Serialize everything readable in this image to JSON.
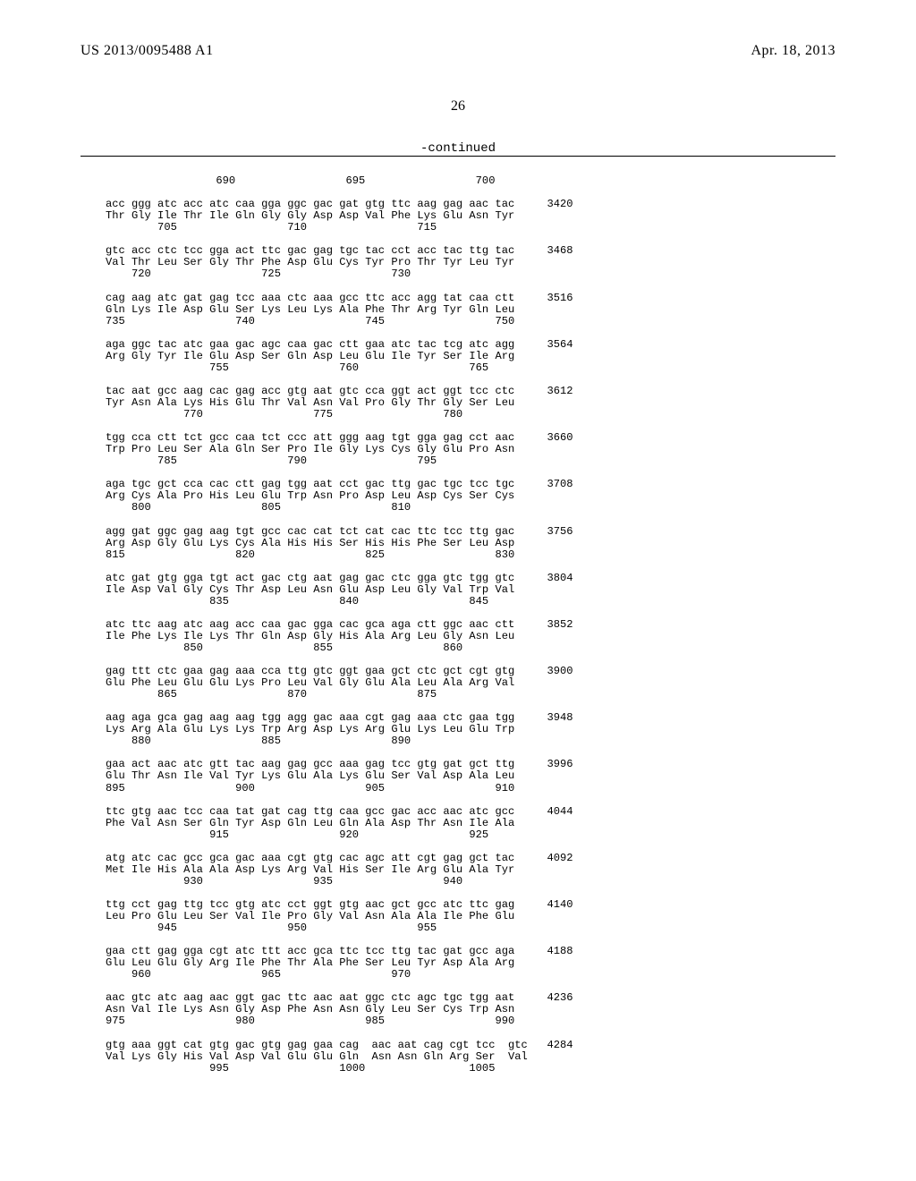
{
  "header": {
    "left": "US 2013/0095488 A1",
    "right": "Apr. 18, 2013"
  },
  "page_number": "26",
  "continued_label": "-continued",
  "sequence_text": "                 690                 695                 700\n\nacc ggg atc acc atc caa gga ggc gac gat gtg ttc aag gag aac tac     3420\nThr Gly Ile Thr Ile Gln Gly Gly Asp Asp Val Phe Lys Glu Asn Tyr\n        705                 710                 715\n\ngtc acc ctc tcc gga act ttc gac gag tgc tac cct acc tac ttg tac     3468\nVal Thr Leu Ser Gly Thr Phe Asp Glu Cys Tyr Pro Thr Tyr Leu Tyr\n    720                 725                 730\n\ncag aag atc gat gag tcc aaa ctc aaa gcc ttc acc agg tat caa ctt     3516\nGln Lys Ile Asp Glu Ser Lys Leu Lys Ala Phe Thr Arg Tyr Gln Leu\n735                 740                 745                 750\n\naga ggc tac atc gaa gac agc caa gac ctt gaa atc tac tcg atc agg     3564\nArg Gly Tyr Ile Glu Asp Ser Gln Asp Leu Glu Ile Tyr Ser Ile Arg\n                755                 760                 765\n\ntac aat gcc aag cac gag acc gtg aat gtc cca ggt act ggt tcc ctc     3612\nTyr Asn Ala Lys His Glu Thr Val Asn Val Pro Gly Thr Gly Ser Leu\n            770                 775                 780\n\ntgg cca ctt tct gcc caa tct ccc att ggg aag tgt gga gag cct aac     3660\nTrp Pro Leu Ser Ala Gln Ser Pro Ile Gly Lys Cys Gly Glu Pro Asn\n        785                 790                 795\n\naga tgc gct cca cac ctt gag tgg aat cct gac ttg gac tgc tcc tgc     3708\nArg Cys Ala Pro His Leu Glu Trp Asn Pro Asp Leu Asp Cys Ser Cys\n    800                 805                 810\n\nagg gat ggc gag aag tgt gcc cac cat tct cat cac ttc tcc ttg gac     3756\nArg Asp Gly Glu Lys Cys Ala His His Ser His His Phe Ser Leu Asp\n815                 820                 825                 830\n\natc gat gtg gga tgt act gac ctg aat gag gac ctc gga gtc tgg gtc     3804\nIle Asp Val Gly Cys Thr Asp Leu Asn Glu Asp Leu Gly Val Trp Val\n                835                 840                 845\n\natc ttc aag atc aag acc caa gac gga cac gca aga ctt ggc aac ctt     3852\nIle Phe Lys Ile Lys Thr Gln Asp Gly His Ala Arg Leu Gly Asn Leu\n            850                 855                 860\n\ngag ttt ctc gaa gag aaa cca ttg gtc ggt gaa gct ctc gct cgt gtg     3900\nGlu Phe Leu Glu Glu Lys Pro Leu Val Gly Glu Ala Leu Ala Arg Val\n        865                 870                 875\n\naag aga gca gag aag aag tgg agg gac aaa cgt gag aaa ctc gaa tgg     3948\nLys Arg Ala Glu Lys Lys Trp Arg Asp Lys Arg Glu Lys Leu Glu Trp\n    880                 885                 890\n\ngaa act aac atc gtt tac aag gag gcc aaa gag tcc gtg gat gct ttg     3996\nGlu Thr Asn Ile Val Tyr Lys Glu Ala Lys Glu Ser Val Asp Ala Leu\n895                 900                 905                 910\n\nttc gtg aac tcc caa tat gat cag ttg caa gcc gac acc aac atc gcc     4044\nPhe Val Asn Ser Gln Tyr Asp Gln Leu Gln Ala Asp Thr Asn Ile Ala\n                915                 920                 925\n\natg atc cac gcc gca gac aaa cgt gtg cac agc att cgt gag gct tac     4092\nMet Ile His Ala Ala Asp Lys Arg Val His Ser Ile Arg Glu Ala Tyr\n            930                 935                 940\n\nttg cct gag ttg tcc gtg atc cct ggt gtg aac gct gcc atc ttc gag     4140\nLeu Pro Glu Leu Ser Val Ile Pro Gly Val Asn Ala Ala Ile Phe Glu\n        945                 950                 955\n\ngaa ctt gag gga cgt atc ttt acc gca ttc tcc ttg tac gat gcc aga     4188\nGlu Leu Glu Gly Arg Ile Phe Thr Ala Phe Ser Leu Tyr Asp Ala Arg\n    960                 965                 970\n\naac gtc atc aag aac ggt gac ttc aac aat ggc ctc agc tgc tgg aat     4236\nAsn Val Ile Lys Asn Gly Asp Phe Asn Asn Gly Leu Ser Cys Trp Asn\n975                 980                 985                 990\n\ngtg aaa ggt cat gtg gac gtg gag gaa cag  aac aat cag cgt tcc  gtc   4284\nVal Lys Gly His Val Asp Val Glu Glu Gln  Asn Asn Gln Arg Ser  Val\n                995                 1000                1005"
}
